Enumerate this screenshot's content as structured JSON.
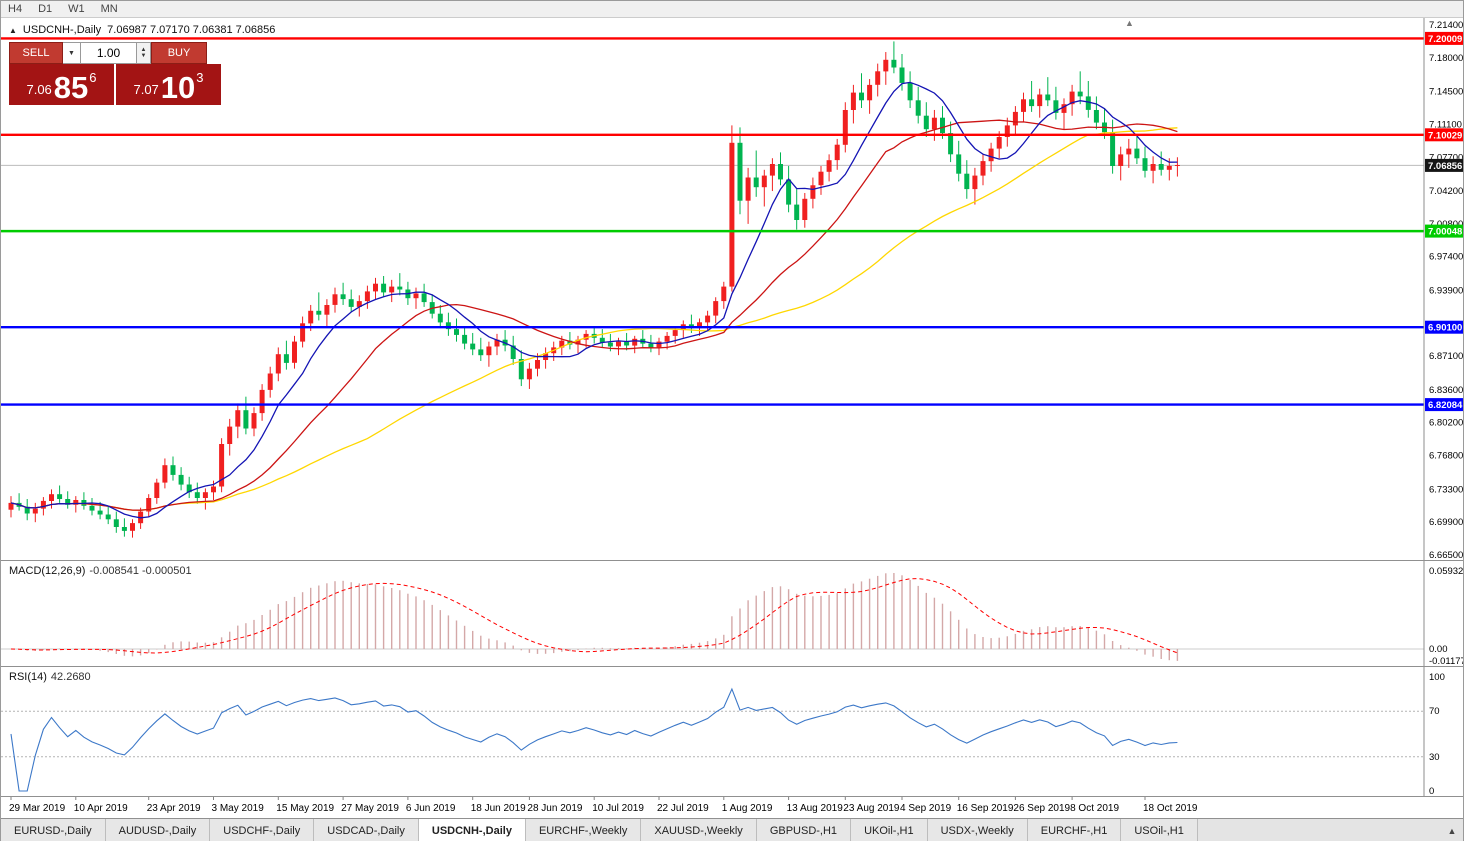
{
  "toolbar": {
    "timeframes": [
      "H4",
      "D1",
      "W1",
      "MN"
    ]
  },
  "chart": {
    "title_symbol": "USDCNH-,Daily",
    "ohlc_text": "7.06987 7.07170 7.06381 7.06856"
  },
  "trade_panel": {
    "sell_label": "SELL",
    "buy_label": "BUY",
    "lot_value": "1.00",
    "sell_price_prefix": "7.06",
    "sell_price_main": "85",
    "sell_price_pip": "6",
    "buy_price_prefix": "7.07",
    "buy_price_main": "10",
    "buy_price_pip": "3"
  },
  "chart_data": {
    "type": "candlestick",
    "symbol": "USDCNH",
    "timeframe": "Daily",
    "colors": {
      "up": "#f02020",
      "down": "#00b450",
      "ma_fast": "#1414b4",
      "ma_mid": "#cc1414",
      "ma_slow": "#ffd700",
      "macd_hist": "#d4a8a8",
      "macd_signal": "#ff0000",
      "rsi": "#3c78c8"
    },
    "ma_periods": {
      "fast": 8,
      "mid": 20,
      "slow": 45
    },
    "y_axis": {
      "top": 7.214,
      "bottom": 6.665,
      "ticks": [
        {
          "label": "7.21400",
          "v": 7.214
        },
        {
          "label": "7.18000",
          "v": 7.18
        },
        {
          "label": "7.14500",
          "v": 7.145
        },
        {
          "label": "7.11100",
          "v": 7.111
        },
        {
          "label": "7.07700",
          "v": 7.077
        },
        {
          "label": "7.04200",
          "v": 7.042
        },
        {
          "label": "7.00800",
          "v": 7.008
        },
        {
          "label": "6.97400",
          "v": 6.974
        },
        {
          "label": "6.93900",
          "v": 6.939
        },
        {
          "label": "6.87100",
          "v": 6.871
        },
        {
          "label": "6.83600",
          "v": 6.836
        },
        {
          "label": "6.80200",
          "v": 6.802
        },
        {
          "label": "6.76800",
          "v": 6.768
        },
        {
          "label": "6.73300",
          "v": 6.733
        },
        {
          "label": "6.69900",
          "v": 6.699
        },
        {
          "label": "6.66500",
          "v": 6.665
        }
      ]
    },
    "hlines": [
      {
        "label": "7.20009",
        "v": 7.20009,
        "color": "#ff0000"
      },
      {
        "label": "7.10029",
        "v": 7.10029,
        "color": "#ff0000"
      },
      {
        "label": "7.00048",
        "v": 7.00048,
        "color": "#00cc00"
      },
      {
        "label": "6.90100",
        "v": 6.901,
        "color": "#0000ff"
      },
      {
        "label": "6.82084",
        "v": 6.82084,
        "color": "#0000ff"
      }
    ],
    "current_price": {
      "label": "7.06856",
      "v": 7.06856,
      "badge_color": "#151515"
    },
    "macd": {
      "name": "MACD(12,26,9)",
      "values": "-0.008541 -0.000501",
      "axis": [
        {
          "label": "0.059323",
          "v": 0.059323
        },
        {
          "label": "0.00",
          "v": 0
        },
        {
          "label": "-0.011773",
          "v": -0.011773
        }
      ]
    },
    "rsi": {
      "name": "RSI(14)",
      "value": "42.2680",
      "levels": [
        70,
        30
      ],
      "axis": [
        {
          "label": "100",
          "v": 100
        },
        {
          "label": "70",
          "v": 70
        },
        {
          "label": "30",
          "v": 30
        },
        {
          "label": "0",
          "v": 0
        }
      ]
    },
    "date_labels": [
      {
        "label": "29 Mar 2019",
        "i": 0
      },
      {
        "label": "10 Apr 2019",
        "i": 8
      },
      {
        "label": "23 Apr 2019",
        "i": 17
      },
      {
        "label": "3 May 2019",
        "i": 25
      },
      {
        "label": "15 May 2019",
        "i": 33
      },
      {
        "label": "27 May 2019",
        "i": 41
      },
      {
        "label": "6 Jun 2019",
        "i": 49
      },
      {
        "label": "18 Jun 2019",
        "i": 57
      },
      {
        "label": "28 Jun 2019",
        "i": 64
      },
      {
        "label": "10 Jul 2019",
        "i": 72
      },
      {
        "label": "22 Jul 2019",
        "i": 80
      },
      {
        "label": "1 Aug 2019",
        "i": 88
      },
      {
        "label": "13 Aug 2019",
        "i": 96
      },
      {
        "label": "23 Aug 2019",
        "i": 103
      },
      {
        "label": "4 Sep 2019",
        "i": 110
      },
      {
        "label": "16 Sep 2019",
        "i": 117
      },
      {
        "label": "26 Sep 2019",
        "i": 124
      },
      {
        "label": "8 Oct 2019",
        "i": 131
      },
      {
        "label": "18 Oct 2019",
        "i": 140
      }
    ],
    "ohlc": [
      [
        6.712,
        6.726,
        6.704,
        6.719
      ],
      [
        6.719,
        6.729,
        6.711,
        6.715
      ],
      [
        6.715,
        6.723,
        6.701,
        6.708
      ],
      [
        6.708,
        6.719,
        6.699,
        6.713
      ],
      [
        6.713,
        6.725,
        6.706,
        6.721
      ],
      [
        6.721,
        6.733,
        6.713,
        6.728
      ],
      [
        6.728,
        6.737,
        6.719,
        6.723
      ],
      [
        6.723,
        6.731,
        6.713,
        6.717
      ],
      [
        6.717,
        6.726,
        6.709,
        6.722
      ],
      [
        6.722,
        6.73,
        6.712,
        6.716
      ],
      [
        6.716,
        6.724,
        6.706,
        6.711
      ],
      [
        6.711,
        6.72,
        6.702,
        6.707
      ],
      [
        6.707,
        6.716,
        6.697,
        6.702
      ],
      [
        6.702,
        6.71,
        6.688,
        6.694
      ],
      [
        6.694,
        6.703,
        6.684,
        6.69
      ],
      [
        6.69,
        6.702,
        6.683,
        6.698
      ],
      [
        6.698,
        6.714,
        6.692,
        6.71
      ],
      [
        6.71,
        6.728,
        6.704,
        6.724
      ],
      [
        6.724,
        6.744,
        6.718,
        6.74
      ],
      [
        6.74,
        6.765,
        6.734,
        6.758
      ],
      [
        6.758,
        6.767,
        6.742,
        6.748
      ],
      [
        6.748,
        6.756,
        6.732,
        6.738
      ],
      [
        6.738,
        6.746,
        6.724,
        6.73
      ],
      [
        6.73,
        6.74,
        6.718,
        6.724
      ],
      [
        6.724,
        6.734,
        6.712,
        6.73
      ],
      [
        6.73,
        6.742,
        6.722,
        6.736
      ],
      [
        6.736,
        6.786,
        6.73,
        6.78
      ],
      [
        6.78,
        6.806,
        6.768,
        6.798
      ],
      [
        6.798,
        6.822,
        6.786,
        6.815
      ],
      [
        6.815,
        6.829,
        6.79,
        6.796
      ],
      [
        6.796,
        6.818,
        6.788,
        6.812
      ],
      [
        6.812,
        6.842,
        6.804,
        6.836
      ],
      [
        6.836,
        6.86,
        6.828,
        6.853
      ],
      [
        6.853,
        6.88,
        6.845,
        6.873
      ],
      [
        6.873,
        6.887,
        6.857,
        6.864
      ],
      [
        6.864,
        6.892,
        6.858,
        6.886
      ],
      [
        6.886,
        6.912,
        6.88,
        6.905
      ],
      [
        6.905,
        6.924,
        6.897,
        6.918
      ],
      [
        6.918,
        6.937,
        6.908,
        6.914
      ],
      [
        6.914,
        6.93,
        6.902,
        6.924
      ],
      [
        6.924,
        6.942,
        6.916,
        6.935
      ],
      [
        6.935,
        6.947,
        6.924,
        6.93
      ],
      [
        6.93,
        6.94,
        6.917,
        6.922
      ],
      [
        6.922,
        6.934,
        6.912,
        6.928
      ],
      [
        6.928,
        6.944,
        6.92,
        6.938
      ],
      [
        6.938,
        6.952,
        6.93,
        6.946
      ],
      [
        6.946,
        6.954,
        6.932,
        6.937
      ],
      [
        6.937,
        6.95,
        6.927,
        6.943
      ],
      [
        6.943,
        6.957,
        6.934,
        6.94
      ],
      [
        6.94,
        6.948,
        6.924,
        6.931
      ],
      [
        6.931,
        6.942,
        6.92,
        6.936
      ],
      [
        6.936,
        6.946,
        6.922,
        6.927
      ],
      [
        6.927,
        6.935,
        6.91,
        6.915
      ],
      [
        6.915,
        6.924,
        6.9,
        6.906
      ],
      [
        6.906,
        6.916,
        6.892,
        6.899
      ],
      [
        6.899,
        6.91,
        6.886,
        6.893
      ],
      [
        6.893,
        6.902,
        6.878,
        6.884
      ],
      [
        6.884,
        6.895,
        6.872,
        6.878
      ],
      [
        6.878,
        6.89,
        6.866,
        6.872
      ],
      [
        6.872,
        6.886,
        6.86,
        6.881
      ],
      [
        6.881,
        6.894,
        6.872,
        6.888
      ],
      [
        6.888,
        6.898,
        6.876,
        6.882
      ],
      [
        6.882,
        6.892,
        6.862,
        6.868
      ],
      [
        6.868,
        6.877,
        6.84,
        6.847
      ],
      [
        6.847,
        6.864,
        6.837,
        6.858
      ],
      [
        6.858,
        6.874,
        6.85,
        6.867
      ],
      [
        6.867,
        6.88,
        6.858,
        6.874
      ],
      [
        6.874,
        6.886,
        6.866,
        6.88
      ],
      [
        6.88,
        6.892,
        6.872,
        6.887
      ],
      [
        6.887,
        6.896,
        6.878,
        6.883
      ],
      [
        6.883,
        6.892,
        6.874,
        6.888
      ],
      [
        6.888,
        6.898,
        6.88,
        6.894
      ],
      [
        6.894,
        6.902,
        6.884,
        6.89
      ],
      [
        6.89,
        6.899,
        6.88,
        6.885
      ],
      [
        6.885,
        6.894,
        6.876,
        6.881
      ],
      [
        6.881,
        6.89,
        6.872,
        6.886
      ],
      [
        6.886,
        6.895,
        6.877,
        6.882
      ],
      [
        6.882,
        6.892,
        6.874,
        6.889
      ],
      [
        6.889,
        6.898,
        6.88,
        6.884
      ],
      [
        6.884,
        6.893,
        6.875,
        6.88
      ],
      [
        6.88,
        6.89,
        6.872,
        6.886
      ],
      [
        6.886,
        6.896,
        6.878,
        6.892
      ],
      [
        6.892,
        6.902,
        6.884,
        6.898
      ],
      [
        6.898,
        6.908,
        6.89,
        6.904
      ],
      [
        6.904,
        6.914,
        6.895,
        6.9
      ],
      [
        6.9,
        6.91,
        6.892,
        6.906
      ],
      [
        6.906,
        6.918,
        6.898,
        6.913
      ],
      [
        6.913,
        6.932,
        6.905,
        6.928
      ],
      [
        6.928,
        6.948,
        6.92,
        6.943
      ],
      [
        6.943,
        7.11,
        6.938,
        7.092
      ],
      [
        7.092,
        7.108,
        7.018,
        7.032
      ],
      [
        7.032,
        7.066,
        7.008,
        7.056
      ],
      [
        7.056,
        7.084,
        7.036,
        7.046
      ],
      [
        7.046,
        7.064,
        7.026,
        7.058
      ],
      [
        7.058,
        7.076,
        7.042,
        7.07
      ],
      [
        7.07,
        7.082,
        7.048,
        7.054
      ],
      [
        7.054,
        7.068,
        7.02,
        7.028
      ],
      [
        7.028,
        7.044,
        7.002,
        7.012
      ],
      [
        7.012,
        7.04,
        7.004,
        7.034
      ],
      [
        7.034,
        7.056,
        7.024,
        7.048
      ],
      [
        7.048,
        7.068,
        7.038,
        7.062
      ],
      [
        7.062,
        7.08,
        7.052,
        7.074
      ],
      [
        7.074,
        7.096,
        7.064,
        7.09
      ],
      [
        7.09,
        7.134,
        7.082,
        7.126
      ],
      [
        7.126,
        7.152,
        7.112,
        7.144
      ],
      [
        7.144,
        7.164,
        7.128,
        7.136
      ],
      [
        7.136,
        7.158,
        7.122,
        7.152
      ],
      [
        7.152,
        7.174,
        7.14,
        7.166
      ],
      [
        7.166,
        7.186,
        7.152,
        7.178
      ],
      [
        7.178,
        7.197,
        7.164,
        7.17
      ],
      [
        7.17,
        7.184,
        7.146,
        7.154
      ],
      [
        7.154,
        7.166,
        7.128,
        7.136
      ],
      [
        7.136,
        7.15,
        7.112,
        7.12
      ],
      [
        7.12,
        7.134,
        7.098,
        7.106
      ],
      [
        7.106,
        7.126,
        7.094,
        7.118
      ],
      [
        7.118,
        7.13,
        7.096,
        7.102
      ],
      [
        7.102,
        7.114,
        7.072,
        7.08
      ],
      [
        7.08,
        7.094,
        7.052,
        7.06
      ],
      [
        7.06,
        7.074,
        7.034,
        7.044
      ],
      [
        7.044,
        7.066,
        7.028,
        7.058
      ],
      [
        7.058,
        7.08,
        7.048,
        7.073
      ],
      [
        7.073,
        7.092,
        7.062,
        7.086
      ],
      [
        7.086,
        7.104,
        7.076,
        7.098
      ],
      [
        7.098,
        7.118,
        7.088,
        7.11
      ],
      [
        7.11,
        7.13,
        7.1,
        7.124
      ],
      [
        7.124,
        7.144,
        7.114,
        7.137
      ],
      [
        7.137,
        7.156,
        7.124,
        7.13
      ],
      [
        7.13,
        7.148,
        7.118,
        7.142
      ],
      [
        7.142,
        7.16,
        7.13,
        7.136
      ],
      [
        7.136,
        7.15,
        7.116,
        7.123
      ],
      [
        7.123,
        7.138,
        7.106,
        7.132
      ],
      [
        7.132,
        7.152,
        7.12,
        7.145
      ],
      [
        7.145,
        7.166,
        7.132,
        7.14
      ],
      [
        7.14,
        7.156,
        7.118,
        7.126
      ],
      [
        7.126,
        7.14,
        7.106,
        7.113
      ],
      [
        7.113,
        7.128,
        7.096,
        7.103
      ],
      [
        7.103,
        7.116,
        7.06,
        7.068
      ],
      [
        7.068,
        7.088,
        7.053,
        7.08
      ],
      [
        7.08,
        7.096,
        7.066,
        7.086
      ],
      [
        7.086,
        7.098,
        7.07,
        7.076
      ],
      [
        7.076,
        7.088,
        7.056,
        7.063
      ],
      [
        7.063,
        7.078,
        7.05,
        7.07
      ],
      [
        7.07,
        7.083,
        7.058,
        7.064
      ],
      [
        7.064,
        7.076,
        7.053,
        7.068
      ],
      [
        7.068,
        7.077,
        7.057,
        7.069
      ]
    ]
  },
  "tabs": [
    {
      "label": "EURUSD-,Daily",
      "active": false
    },
    {
      "label": "AUDUSD-,Daily",
      "active": false
    },
    {
      "label": "USDCHF-,Daily",
      "active": false
    },
    {
      "label": "USDCAD-,Daily",
      "active": false
    },
    {
      "label": "USDCNH-,Daily",
      "active": true
    },
    {
      "label": "EURCHF-,Weekly",
      "active": false
    },
    {
      "label": "XAUUSD-,Weekly",
      "active": false
    },
    {
      "label": "GBPUSD-,H1",
      "active": false
    },
    {
      "label": "UKOil-,H1",
      "active": false
    },
    {
      "label": "USDX-,Weekly",
      "active": false
    },
    {
      "label": "EURCHF-,H1",
      "active": false
    },
    {
      "label": "USOil-,H1",
      "active": false
    }
  ]
}
